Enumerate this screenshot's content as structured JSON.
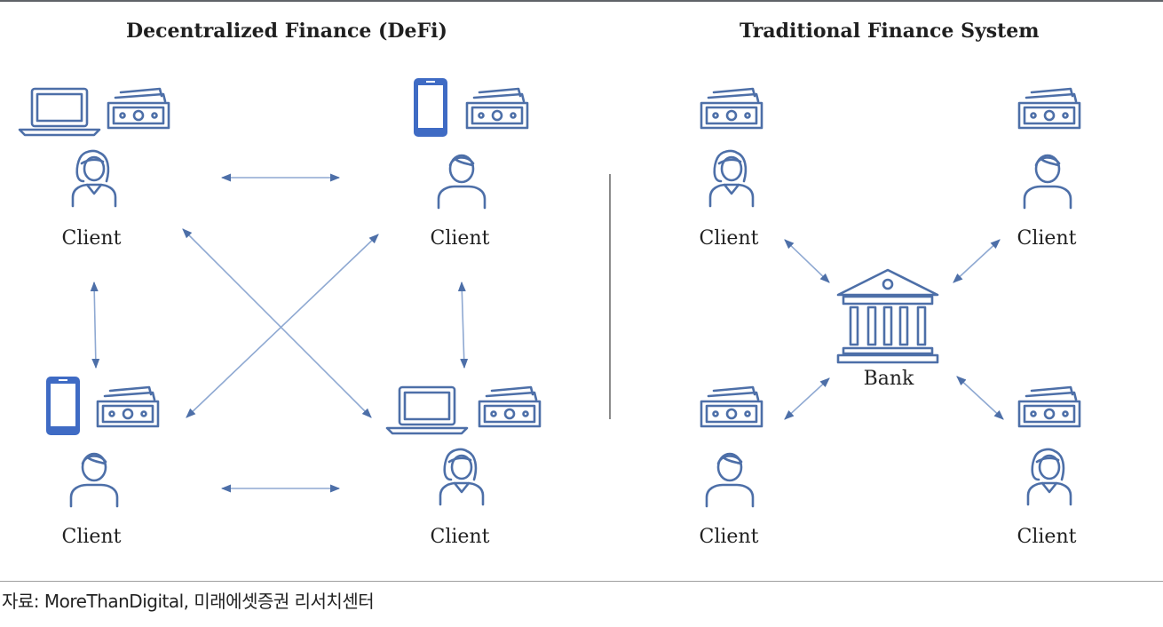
{
  "titles": {
    "defi": "Decentralized Finance (DeFi)",
    "traditional": "Traditional Finance System"
  },
  "defi": {
    "clients": [
      {
        "label": "Client",
        "device": "laptop-icon",
        "person": "woman-icon"
      },
      {
        "label": "Client",
        "device": "phone-icon",
        "person": "man-icon"
      },
      {
        "label": "Client",
        "device": "phone-icon",
        "person": "man-icon"
      },
      {
        "label": "Client",
        "device": "laptop-icon",
        "person": "woman-icon"
      }
    ]
  },
  "traditional": {
    "clients": [
      {
        "label": "Client",
        "person": "woman-icon"
      },
      {
        "label": "Client",
        "person": "man-icon"
      },
      {
        "label": "Client",
        "person": "man-icon"
      },
      {
        "label": "Client",
        "person": "woman-icon"
      }
    ],
    "bank": {
      "label": "Bank",
      "icon": "bank-icon"
    }
  },
  "source": "자료: MoreThanDigital, 미래에셋증권 리서치센터",
  "colors": {
    "icon_stroke": "#4d6fa8",
    "phone_fill": "#3f6bc4",
    "arrow": "#8fa9d2"
  }
}
